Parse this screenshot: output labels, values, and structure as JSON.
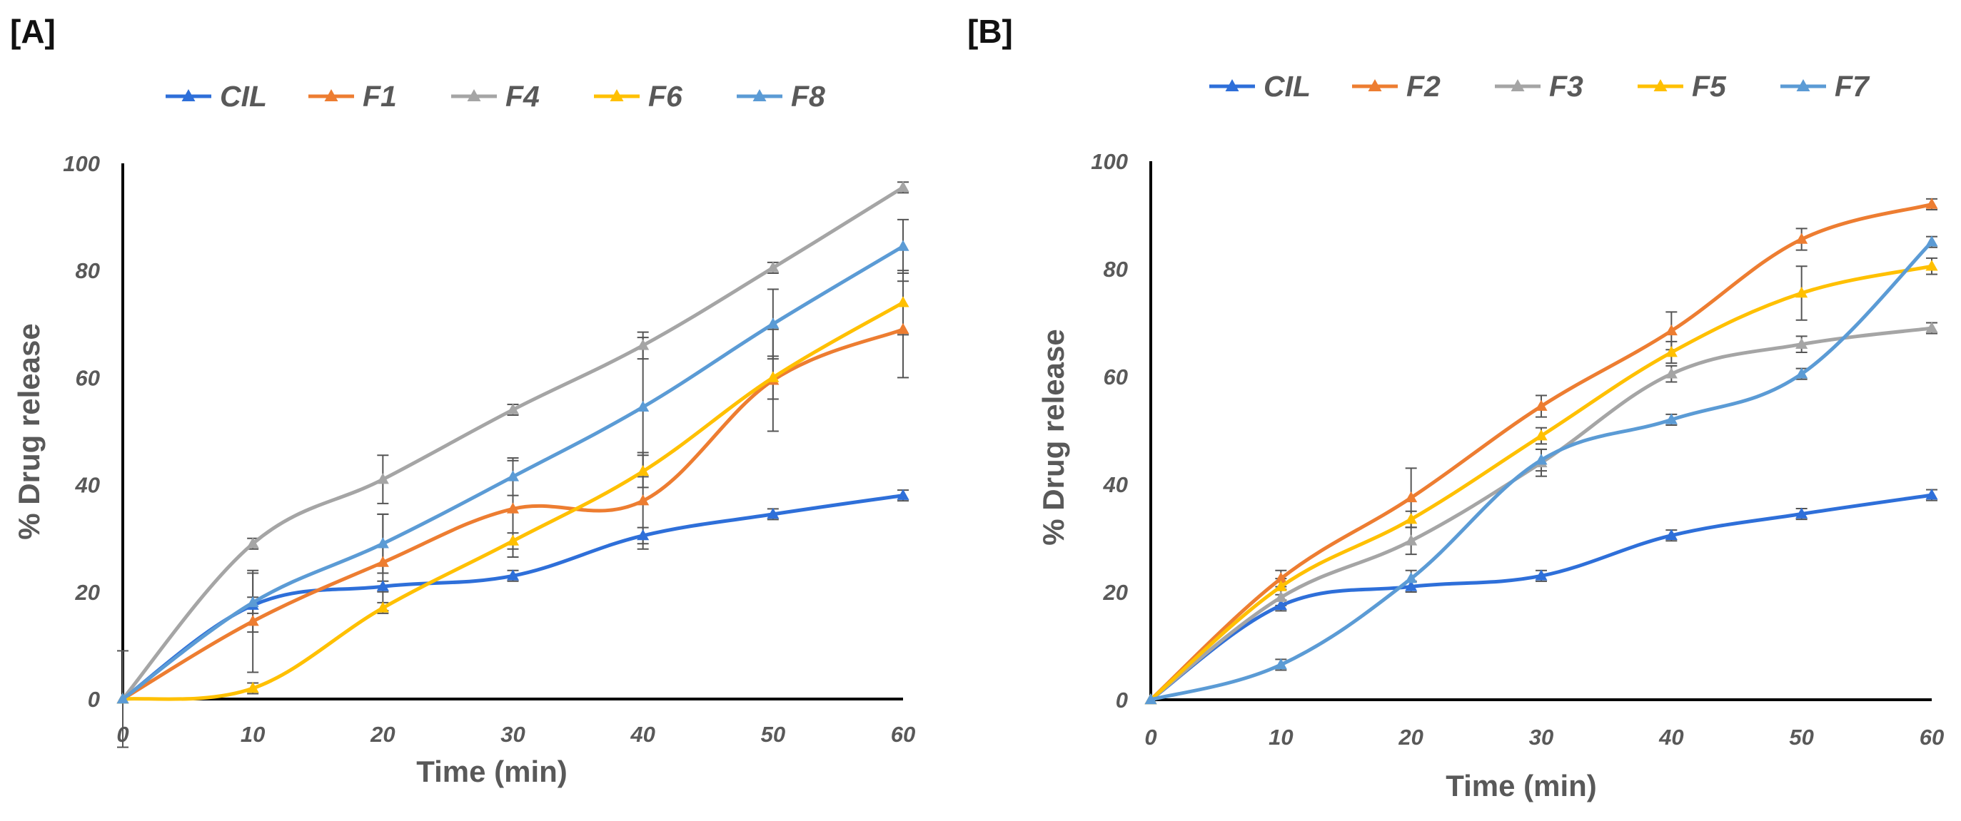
{
  "chart_data": [
    {
      "panel": "[A]",
      "type": "line",
      "xlabel": "Time (min)",
      "ylabel": "% Drug release",
      "xlim": [
        0,
        60
      ],
      "ylim": [
        0,
        100
      ],
      "xticks": [
        0,
        10,
        20,
        30,
        40,
        50,
        60
      ],
      "yticks": [
        0,
        20,
        40,
        60,
        80,
        100
      ],
      "x": [
        0,
        10,
        20,
        30,
        40,
        50,
        60
      ],
      "legend_position": "top",
      "series": [
        {
          "name": "CIL",
          "color": "#2e6fd9",
          "values": [
            0,
            17.5,
            21,
            23,
            30.5,
            34.5,
            38
          ],
          "errors": [
            0,
            1.5,
            1,
            1,
            1.5,
            1,
            1
          ]
        },
        {
          "name": "F1",
          "color": "#ed7d31",
          "values": [
            0,
            14.5,
            25.5,
            35.5,
            37,
            59.5,
            69
          ],
          "errors": [
            9,
            9.5,
            9,
            9,
            9,
            9.5,
            9
          ]
        },
        {
          "name": "F4",
          "color": "#a5a5a5",
          "values": [
            0,
            29,
            41,
            54,
            66,
            80.5,
            95.5
          ],
          "errors": [
            0,
            1,
            4.5,
            1,
            2.5,
            1,
            1
          ]
        },
        {
          "name": "F6",
          "color": "#ffc000",
          "values": [
            0,
            2,
            17,
            29.5,
            42.5,
            60,
            74
          ],
          "errors": [
            0,
            1,
            1,
            1.5,
            3,
            4,
            6
          ]
        },
        {
          "name": "F8",
          "color": "#5b9bd5",
          "values": [
            0,
            18,
            29,
            41.5,
            54.5,
            70,
            84.5
          ],
          "errors": [
            0,
            5.5,
            5.5,
            3.5,
            13,
            6.5,
            5
          ]
        }
      ]
    },
    {
      "panel": "[B]",
      "type": "line",
      "xlabel": "Time (min)",
      "ylabel": "% Drug release",
      "xlim": [
        0,
        60
      ],
      "ylim": [
        0,
        100
      ],
      "xticks": [
        0,
        10,
        20,
        30,
        40,
        50,
        60
      ],
      "yticks": [
        0,
        20,
        40,
        60,
        80,
        100
      ],
      "x": [
        0,
        10,
        20,
        30,
        40,
        50,
        60
      ],
      "legend_position": "top",
      "series": [
        {
          "name": "CIL",
          "color": "#2e6fd9",
          "values": [
            0,
            17.5,
            21,
            23,
            30.5,
            34.5,
            38
          ],
          "errors": [
            0,
            1,
            1,
            1,
            1,
            1,
            1
          ]
        },
        {
          "name": "F2",
          "color": "#ed7d31",
          "values": [
            0,
            22.5,
            37.5,
            54.5,
            68.5,
            85.5,
            92
          ],
          "errors": [
            0,
            1.5,
            5.5,
            2,
            3.5,
            2,
            1
          ]
        },
        {
          "name": "F3",
          "color": "#a5a5a5",
          "values": [
            0,
            19,
            29.5,
            44,
            60.5,
            66,
            69
          ],
          "errors": [
            0,
            1.5,
            2.5,
            2.5,
            1.5,
            1.5,
            1
          ]
        },
        {
          "name": "F5",
          "color": "#ffc000",
          "values": [
            0,
            21,
            33.5,
            49,
            64.5,
            75.5,
            80.5
          ],
          "errors": [
            0,
            1.5,
            1.5,
            1.5,
            2,
            5,
            1.5
          ]
        },
        {
          "name": "F7",
          "color": "#5b9bd5",
          "values": [
            0,
            6.5,
            22.5,
            44.5,
            52,
            60.5,
            85
          ],
          "errors": [
            0,
            1,
            1.5,
            2,
            1,
            1,
            1
          ]
        }
      ]
    }
  ]
}
